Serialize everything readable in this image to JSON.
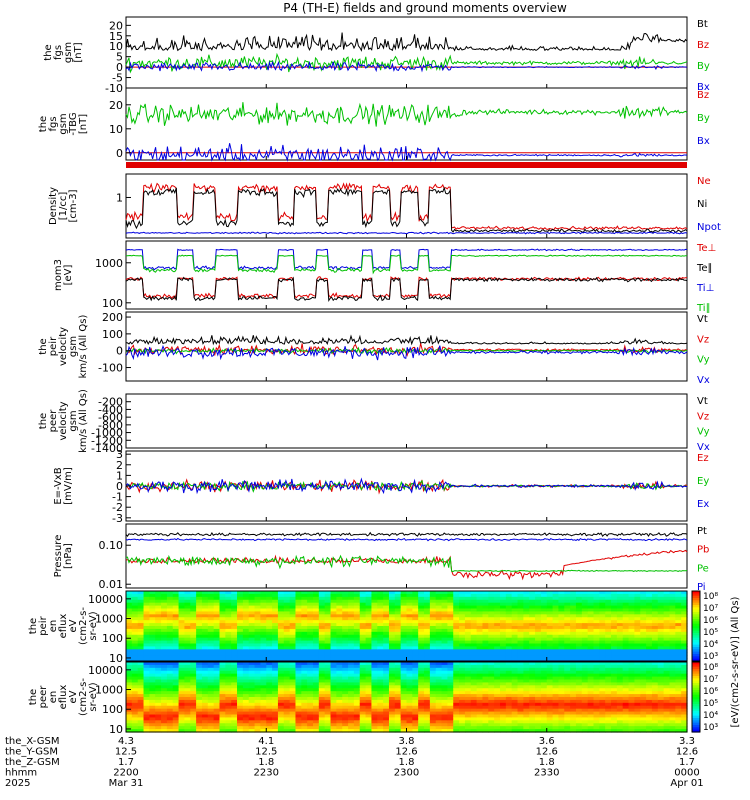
{
  "chart_data": {
    "type": "line",
    "title": "P4 (TH-E) fields and ground moments overview",
    "x": {
      "start_label": "2200",
      "end_label": "0000",
      "ticks": [
        "2200",
        "2230",
        "2300",
        "2330",
        "0000"
      ],
      "range_minutes": [
        0,
        120
      ]
    },
    "panels": [
      {
        "id": "fgs",
        "ylabel": [
          "the",
          "fgs",
          "gsm",
          "[nT]"
        ],
        "scale": "linear",
        "ylim": [
          -10,
          24
        ],
        "ticks": [
          "20",
          "15",
          "10",
          "5",
          "0",
          "-5",
          "-10"
        ],
        "legend": [
          {
            "label": "Bt",
            "color": "#000000"
          },
          {
            "label": "Bz",
            "color": "#e00000"
          },
          {
            "label": "By",
            "color": "#00c000"
          },
          {
            "label": "Bx",
            "color": "#0000e0"
          }
        ]
      },
      {
        "id": "fgs_dsl",
        "ylabel": [
          "the",
          "fgs",
          "gsm",
          "-TBG",
          "[nT]"
        ],
        "scale": "linear",
        "ylim": [
          -3,
          27
        ],
        "ticks": [
          "20",
          "10",
          "0"
        ],
        "legend": [
          {
            "label": "Bz",
            "color": "#e00000"
          },
          {
            "label": "By",
            "color": "#00c000"
          },
          {
            "label": "Bx",
            "color": "#0000e0"
          }
        ]
      },
      {
        "id": "density",
        "ylabel": [
          "Density",
          "[1/cc]",
          "[cm-3]"
        ],
        "scale": "log",
        "ylim": [
          0.15,
          3
        ],
        "ticks": [
          "1"
        ],
        "legend": [
          {
            "label": "Ne",
            "color": "#e00000"
          },
          {
            "label": "Ni",
            "color": "#000000"
          },
          {
            "label": "Npot",
            "color": "#0000e0"
          }
        ]
      },
      {
        "id": "temp",
        "ylabel": [
          "mom3",
          "[eV]"
        ],
        "scale": "log",
        "ylim": [
          70,
          3500
        ],
        "ticks": [
          "1000",
          "100"
        ],
        "legend": [
          {
            "label": "Te⊥",
            "color": "#e00000"
          },
          {
            "label": "Te∥",
            "color": "#000000"
          },
          {
            "label": "Ti⊥",
            "color": "#0000e0"
          },
          {
            "label": "Ti∥",
            "color": "#00c000"
          }
        ]
      },
      {
        "id": "velocity",
        "ylabel": [
          "the",
          "peir",
          "velocity",
          "gsm",
          "km/s (All Qs)"
        ],
        "scale": "linear",
        "ylim": [
          -180,
          230
        ],
        "ticks": [
          "200",
          "100",
          "0",
          "-100"
        ],
        "legend": [
          {
            "label": "Vt",
            "color": "#000000"
          },
          {
            "label": "Vz",
            "color": "#e00000"
          },
          {
            "label": "Vy",
            "color": "#00c000"
          },
          {
            "label": "Vx",
            "color": "#0000e0"
          }
        ]
      },
      {
        "id": "velocity_e",
        "ylabel": [
          "the",
          "peer",
          "velocity",
          "gsm",
          "km/s (All Qs)"
        ],
        "scale": "linear",
        "ylim": [
          -1400,
          0
        ],
        "ticks": [
          "-200",
          "-400",
          "-600",
          "-800",
          "-1000",
          "-1200",
          "-1400"
        ],
        "legend": [
          {
            "label": "Vt",
            "color": "#000000"
          },
          {
            "label": "Vz",
            "color": "#e00000"
          },
          {
            "label": "Vy",
            "color": "#00c000"
          },
          {
            "label": "Vx",
            "color": "#0000e0"
          }
        ]
      },
      {
        "id": "efield",
        "ylabel": [
          "E=-VxB",
          "[mV/m]"
        ],
        "scale": "linear",
        "ylim": [
          -3.3,
          3.3
        ],
        "ticks": [
          "3",
          "2",
          "1",
          "0",
          "-1",
          "-2",
          "-3"
        ],
        "legend": [
          {
            "label": "Ez",
            "color": "#e00000"
          },
          {
            "label": "Ey",
            "color": "#00c000"
          },
          {
            "label": "Ex",
            "color": "#0000e0"
          }
        ]
      },
      {
        "id": "pressure",
        "ylabel": [
          "Pressure",
          "[nPa]"
        ],
        "scale": "log",
        "ylim": [
          0.008,
          0.35
        ],
        "ticks": [
          "0.10",
          "0.01"
        ],
        "legend": [
          {
            "label": "Pt",
            "color": "#000000"
          },
          {
            "label": "Pb",
            "color": "#e00000"
          },
          {
            "label": "Pe",
            "color": "#00c000"
          },
          {
            "label": "Pi",
            "color": "#0000e0"
          }
        ]
      },
      {
        "id": "ion_spec",
        "ylabel": [
          "the",
          "peir",
          "en",
          "eflux",
          "eV",
          "(cm2-s-",
          "sr-eV)"
        ],
        "scale": "log",
        "type": "heatmap",
        "ylim": [
          7,
          25000
        ],
        "ticks": [
          "10000",
          "1000",
          "100",
          "10"
        ]
      },
      {
        "id": "ele_spec",
        "ylabel": [
          "the",
          "peer",
          "en",
          "eflux",
          "eV",
          "(cm2-s-",
          "sr-eV)"
        ],
        "scale": "log",
        "type": "heatmap",
        "ylim": [
          7,
          25000
        ],
        "ticks": [
          "10000",
          "1000",
          "100",
          "10"
        ]
      }
    ],
    "colorbars": [
      {
        "label": "[eV/(cm2-s-sr-eV)] (All Qs)",
        "ticks": [
          "10⁸",
          "10⁷",
          "10⁶",
          "10⁵",
          "10⁴",
          "10³"
        ]
      },
      {
        "label": "[eV/(cm2-s-sr-eV)] (All Qs)",
        "ticks": [
          "10⁸",
          "10⁷",
          "10⁶",
          "10⁵",
          "10⁴",
          "10³"
        ]
      }
    ],
    "orbit_rows": [
      {
        "label": "the_X-GSM",
        "values": [
          "4.3",
          "4.1",
          "3.8",
          "3.6",
          "3.3"
        ]
      },
      {
        "label": "the_Y-GSM",
        "values": [
          "12.5",
          "12.5",
          "12.6",
          "12.6",
          "12.6"
        ]
      },
      {
        "label": "the_Z-GSM",
        "values": [
          "1.7",
          "1.8",
          "1.8",
          "1.8",
          "1.7"
        ]
      },
      {
        "label": "hhmm",
        "values": [
          "2200",
          "2230",
          "2300",
          "2330",
          "0000"
        ]
      },
      {
        "label": "2025",
        "values": [
          "Mar 31",
          "",
          "",
          "",
          "Apr 01"
        ]
      }
    ]
  }
}
